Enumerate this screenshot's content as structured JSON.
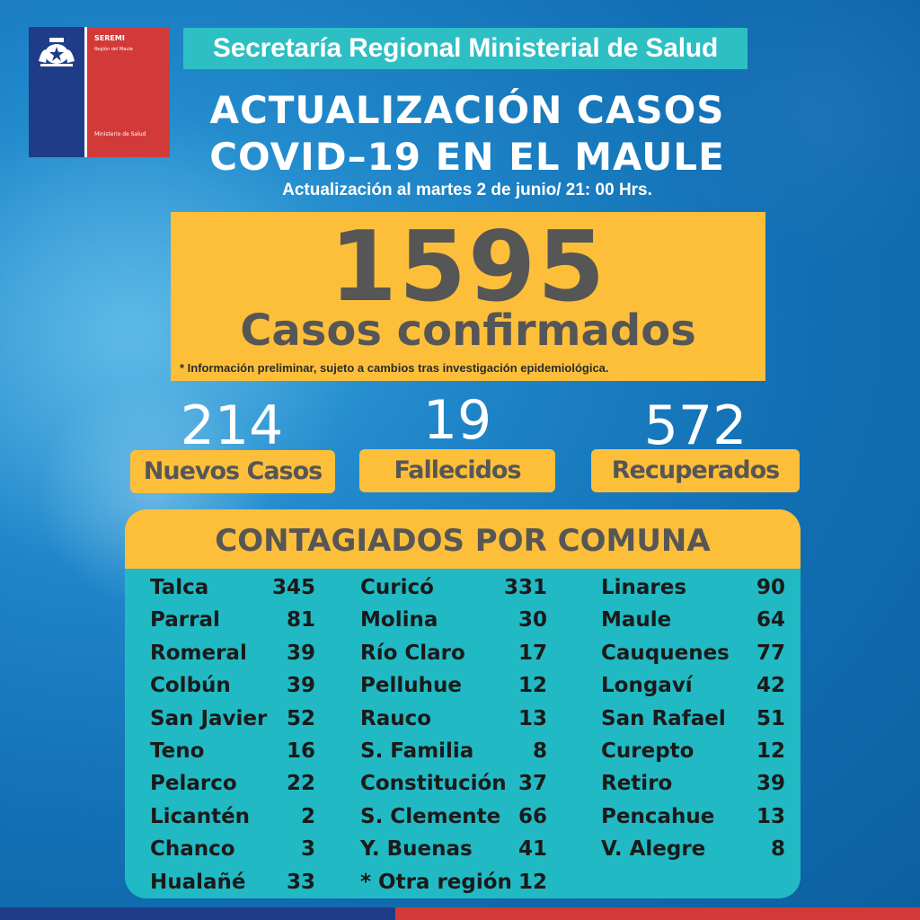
{
  "logo": {
    "seremi": "SEREMI",
    "region": "Región del Maule",
    "ministerio": "Ministerio de Salud"
  },
  "header": {
    "secretaria": "Secretaría Regional Ministerial de Salud",
    "title_line1": "ACTUALIZACIÓN CASOS",
    "title_line2": "COVID–19 EN EL MAULE",
    "subtitle": "Actualización al martes 2 de junio/ 21: 00 Hrs."
  },
  "confirmed": {
    "value": "1595",
    "label": "Casos confirmados",
    "note": "* Información preliminar, sujeto a cambios tras investigación  epidemiológica."
  },
  "stats": [
    {
      "value": "214",
      "label": "Nuevos Casos"
    },
    {
      "value": "19",
      "label": "Fallecidos"
    },
    {
      "value": "572",
      "label": "Recuperados"
    }
  ],
  "comunas": {
    "title": "CONTAGIADOS POR COMUNA",
    "columns": [
      [
        {
          "name": "Talca",
          "value": "345"
        },
        {
          "name": "Parral",
          "value": "81"
        },
        {
          "name": "Romeral",
          "value": "39"
        },
        {
          "name": "Colbún",
          "value": "39"
        },
        {
          "name": "San Javier",
          "value": "52"
        },
        {
          "name": "Teno",
          "value": "16"
        },
        {
          "name": "Pelarco",
          "value": "22"
        },
        {
          "name": "Licantén",
          "value": "2"
        },
        {
          "name": "Chanco",
          "value": "3"
        },
        {
          "name": "Hualañé",
          "value": "33"
        }
      ],
      [
        {
          "name": "Curicó",
          "value": "331"
        },
        {
          "name": "Molina",
          "value": "30"
        },
        {
          "name": "Río Claro",
          "value": "17"
        },
        {
          "name": "Pelluhue",
          "value": "12"
        },
        {
          "name": "Rauco",
          "value": "13"
        },
        {
          "name": "S. Familia",
          "value": "8"
        },
        {
          "name": "Constitución",
          "value": "37"
        },
        {
          "name": "S. Clemente",
          "value": "66"
        },
        {
          "name": "Y. Buenas",
          "value": "41"
        },
        {
          "name": "* Otra región",
          "value": "12"
        }
      ],
      [
        {
          "name": "Linares",
          "value": "90"
        },
        {
          "name": "Maule",
          "value": "64"
        },
        {
          "name": "Cauquenes",
          "value": "77"
        },
        {
          "name": "Longaví",
          "value": "42"
        },
        {
          "name": "San Rafael",
          "value": "51"
        },
        {
          "name": "Curepto",
          "value": "12"
        },
        {
          "name": "Retiro",
          "value": "39"
        },
        {
          "name": "Pencahue",
          "value": "13"
        },
        {
          "name": "V. Alegre",
          "value": "8"
        }
      ]
    ]
  },
  "colors": {
    "yellow": "#fdbf3a",
    "teal": "#21bac4",
    "gray_text": "#575656",
    "blue_bg": "#1f86c9"
  }
}
